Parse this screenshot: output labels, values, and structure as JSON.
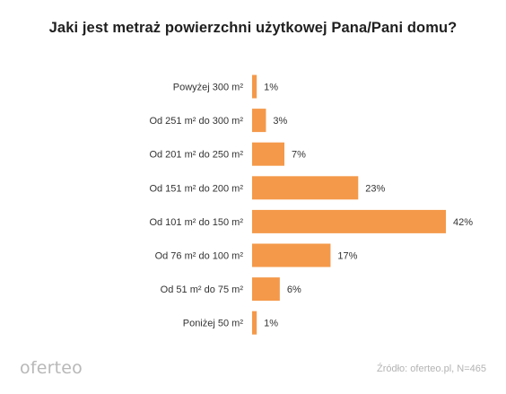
{
  "chart_data": {
    "type": "bar",
    "orientation": "horizontal",
    "title": "Jaki jest metraż powierzchni użytkowej Pana/Pani domu?",
    "categories": [
      "Powyżej 300 m²",
      "Od 251 m² do 300 m²",
      "Od 201 m² do 250 m²",
      "Od 151 m² do 200 m²",
      "Od 101 m² do 150 m²",
      "Od 76 m² do 100 m²",
      "Od 51 m² do 75 m²",
      "Poniżej 50 m²"
    ],
    "values": [
      1,
      3,
      7,
      23,
      42,
      17,
      6,
      1
    ],
    "value_labels": [
      "1%",
      "3%",
      "7%",
      "23%",
      "42%",
      "17%",
      "6%",
      "1%"
    ],
    "unit": "%",
    "bar_color": "#F4994A",
    "xlim": [
      0,
      42
    ],
    "grid": false,
    "legend": "none"
  },
  "logo_text": "oferteo",
  "source_text": "Źródło: oferteo.pl, N=465"
}
